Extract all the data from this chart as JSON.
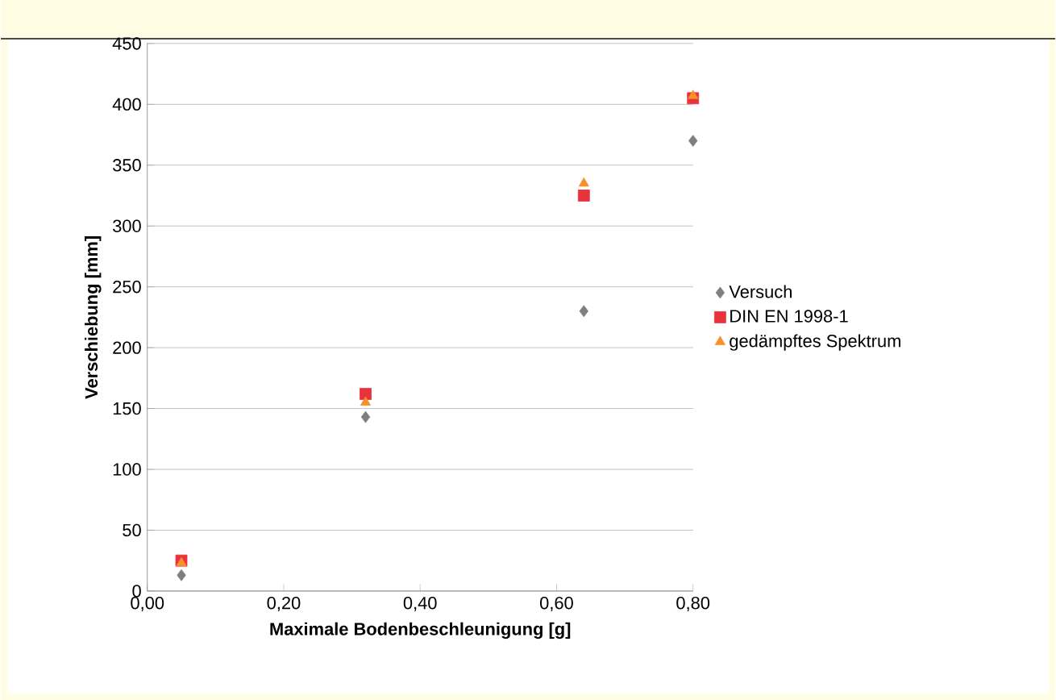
{
  "chart_data": {
    "type": "scatter",
    "xlabel": "Maximale Bodenbeschleunigung [g]",
    "ylabel": "Verschiebung [mm]",
    "x": [
      0.05,
      0.32,
      0.64,
      0.8
    ],
    "series": [
      {
        "name": "Versuch",
        "color": "#7f7f7f",
        "marker": "diamond",
        "values": [
          13,
          143,
          230,
          370
        ]
      },
      {
        "name": "DIN EN 1998-1",
        "color": "#e8323c",
        "marker": "square",
        "values": [
          25,
          162,
          325,
          405
        ]
      },
      {
        "name": "gedämpftes Spektrum",
        "color": "#f7902b",
        "marker": "triangle",
        "values": [
          23,
          155,
          335,
          407
        ]
      }
    ],
    "xlim": [
      0,
      0.8
    ],
    "ylim": [
      0,
      450
    ],
    "xticks": [
      {
        "value": 0,
        "label": "0,00"
      },
      {
        "value": 0.2,
        "label": "0,20"
      },
      {
        "value": 0.4,
        "label": "0,40"
      },
      {
        "value": 0.6,
        "label": "0,60"
      },
      {
        "value": 0.8,
        "label": "0,80"
      }
    ],
    "yticks": [
      0,
      50,
      100,
      150,
      200,
      250,
      300,
      350,
      400,
      450
    ],
    "grid": "y",
    "legend": "right"
  }
}
